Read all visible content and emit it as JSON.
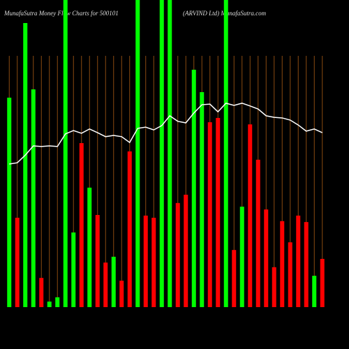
{
  "chart_data": {
    "type": "bar-line",
    "title": "MunafaSutra  Money Flow  Charts for 500101",
    "subtitle": "(ARVIND Ltd) MunafaSutra.com",
    "categories": [
      null,
      null,
      null,
      null,
      null,
      null,
      null,
      null,
      null,
      null,
      null,
      null,
      null,
      null,
      null,
      null,
      null,
      null,
      null,
      null,
      null,
      null,
      null,
      null,
      null,
      null,
      null,
      null,
      null,
      null,
      null,
      null,
      null,
      null,
      null,
      null,
      null,
      null,
      null,
      null
    ],
    "ylim": [
      0,
      100
    ],
    "grid": true,
    "grid_color": "#8a4a10",
    "bars": {
      "values": [
        68.2,
        29.1,
        92.5,
        70.9,
        9.5,
        1.8,
        3.2,
        100,
        24.3,
        53.4,
        38.9,
        30,
        14.5,
        16.4,
        8.6,
        50.7,
        100,
        29.8,
        29.1,
        100,
        100,
        33.9,
        36.6,
        77.3,
        70,
        60.2,
        61.6,
        100,
        18.6,
        32.7,
        59.5,
        48,
        31.8,
        13,
        28,
        21.1,
        29.8,
        27.7,
        10.2,
        15.7
      ],
      "colors": [
        "#00ff00",
        "#ff0000",
        "#00ff00",
        "#00ff00",
        "#ff0000",
        "#00ff00",
        "#00ff00",
        "#00ff00",
        "#00ff00",
        "#ff0000",
        "#00ff00",
        "#ff0000",
        "#ff0000",
        "#00ff00",
        "#ff0000",
        "#ff0000",
        "#00ff00",
        "#ff0000",
        "#ff0000",
        "#00ff00",
        "#00ff00",
        "#ff0000",
        "#ff0000",
        "#00ff00",
        "#00ff00",
        "#ff0000",
        "#ff0000",
        "#00ff00",
        "#ff0000",
        "#00ff00",
        "#ff0000",
        "#ff0000",
        "#ff0000",
        "#ff0000",
        "#ff0000",
        "#ff0000",
        "#ff0000",
        "#ff0000",
        "#00ff00",
        "#ff0000"
      ]
    },
    "line": {
      "color": "#ffffff",
      "values": [
        46.6,
        47,
        49.5,
        52.5,
        52.3,
        52.5,
        52.3,
        56.4,
        57.5,
        56.6,
        58,
        56.8,
        55.5,
        55.9,
        55.5,
        53.6,
        58.2,
        58.6,
        57.7,
        59.1,
        62.3,
        60.5,
        60,
        63.2,
        65.9,
        66.1,
        63.6,
        66.4,
        65.7,
        66.4,
        65.5,
        64.5,
        62.3,
        61.8,
        61.6,
        60.9,
        59.3,
        57.3,
        58,
        56.8
      ]
    }
  }
}
